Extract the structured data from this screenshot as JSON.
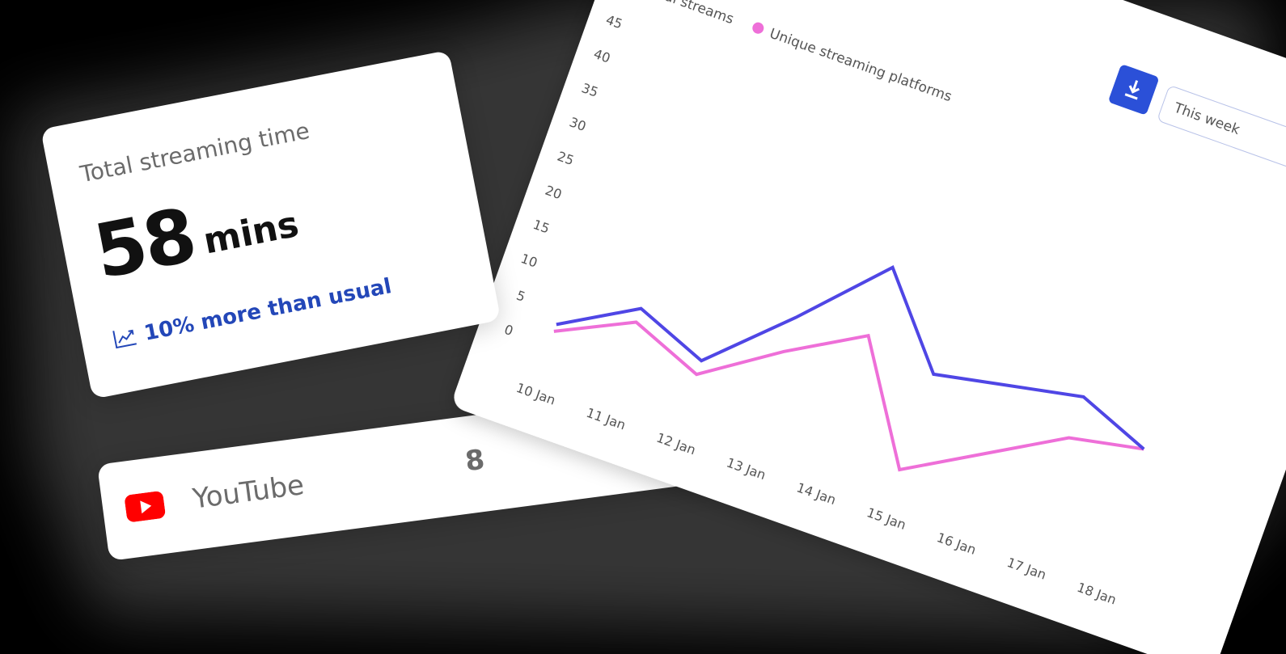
{
  "streaming_time_card": {
    "title": "Total streaming time",
    "value": 58,
    "unit": "mins",
    "trend": "10% more than usual"
  },
  "platform_card": {
    "name": "YouTube",
    "count": 8
  },
  "chart_controls": {
    "period": "This week"
  },
  "chart_data": {
    "type": "line",
    "categories": [
      "10 Jan",
      "11 Jan",
      "12 Jan",
      "13 Jan",
      "14 Jan",
      "15 Jan",
      "16 Jan",
      "17 Jan",
      "18 Jan"
    ],
    "series": [
      {
        "name": "Total streams",
        "color": "#4f46e5",
        "values": [
          3,
          9,
          5,
          15,
          26,
          14,
          16,
          18,
          14
        ]
      },
      {
        "name": "Unique streaming platforms",
        "color": "#ee6fd8",
        "values": [
          2,
          7,
          3,
          10,
          16,
          0,
          6,
          12,
          14
        ]
      }
    ],
    "ylim": [
      0,
      45
    ],
    "yticks": [
      0,
      5,
      10,
      15,
      20,
      25,
      30,
      35,
      40,
      45
    ],
    "grid": false
  }
}
